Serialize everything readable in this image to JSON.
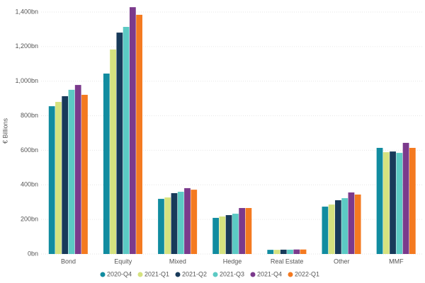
{
  "chart_data": {
    "type": "bar",
    "y_label": "€ Billions",
    "categories": [
      "Bond",
      "Equity",
      "Mixed",
      "Hedge",
      "Real Estate",
      "Other",
      "MMF"
    ],
    "series": [
      {
        "name": "2020-Q4",
        "color": "#118ca0",
        "values": [
          855,
          1044,
          319,
          209,
          24,
          274,
          614
        ]
      },
      {
        "name": "2021-Q1",
        "color": "#d5e27f",
        "values": [
          880,
          1183,
          327,
          217,
          24,
          286,
          589
        ]
      },
      {
        "name": "2021-Q2",
        "color": "#183a5a",
        "values": [
          913,
          1281,
          352,
          225,
          25,
          311,
          593
        ]
      },
      {
        "name": "2021-Q3",
        "color": "#5ccac4",
        "values": [
          950,
          1314,
          360,
          233,
          25,
          323,
          585
        ]
      },
      {
        "name": "2021-Q4",
        "color": "#7b3a8c",
        "values": [
          978,
          1428,
          381,
          266,
          26,
          356,
          643
        ]
      },
      {
        "name": "2022-Q1",
        "color": "#f47a20",
        "values": [
          921,
          1384,
          372,
          266,
          26,
          344,
          614
        ]
      }
    ],
    "ylim": [
      0,
      1400
    ],
    "yticks": [
      {
        "value": 0,
        "label": "0bn"
      },
      {
        "value": 200,
        "label": "200bn"
      },
      {
        "value": 400,
        "label": "400bn"
      },
      {
        "value": 600,
        "label": "600bn"
      },
      {
        "value": 800,
        "label": "800bn"
      },
      {
        "value": 1000,
        "label": "1,000bn"
      },
      {
        "value": 1200,
        "label": "1,200bn"
      },
      {
        "value": 1400,
        "label": "1,400bn"
      }
    ],
    "grid": true,
    "legend": "bottom"
  }
}
